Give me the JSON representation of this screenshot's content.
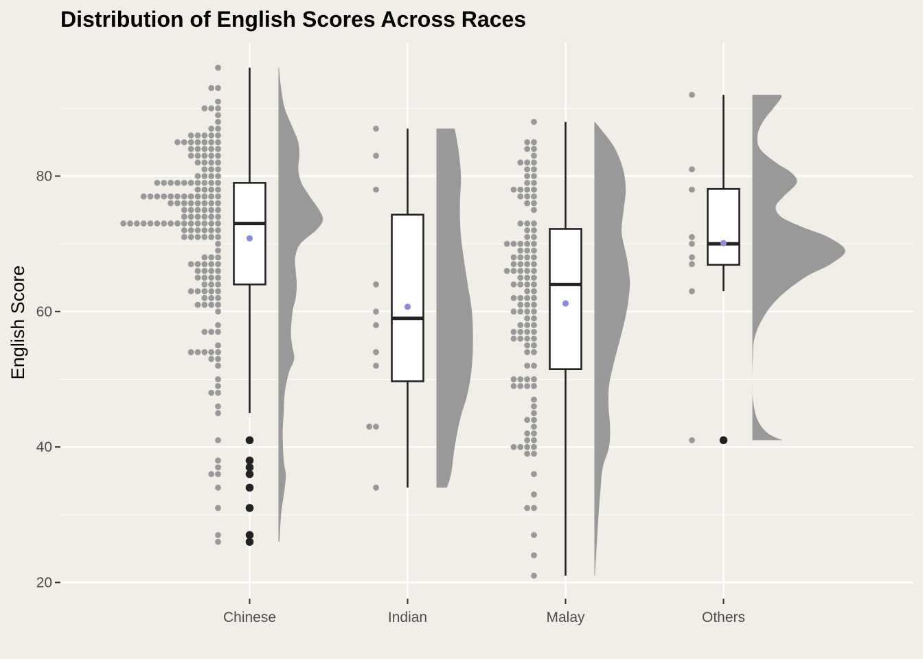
{
  "chart_data": {
    "type": "raincloud",
    "title": "Distribution of English Scores Across Races",
    "xlabel": "",
    "ylabel": "English Score",
    "ylim": [
      19,
      98
    ],
    "yticks": [
      20,
      40,
      60,
      80
    ],
    "categories": [
      "Chinese",
      "Indian",
      "Malay",
      "Others"
    ],
    "colors": {
      "background": "#f0eee6",
      "grid": "#ffffff",
      "points": "#999999",
      "density": "#999999",
      "box_fill": "#ffffff",
      "box_line": "#222222",
      "outlier": "#222222",
      "mean": "#8d8dd6"
    },
    "groups": [
      {
        "name": "Chinese",
        "box": {
          "lower_whisker": 45,
          "q1": 64,
          "median": 73,
          "q3": 79,
          "upper_whisker": 96
        },
        "mean": 70.8,
        "outliers": [
          41,
          38,
          37,
          36,
          34,
          31,
          27,
          26
        ],
        "dots": [
          [
            96,
            1
          ],
          [
            93,
            2
          ],
          [
            91,
            1
          ],
          [
            90,
            3
          ],
          [
            89,
            1
          ],
          [
            88,
            1
          ],
          [
            87,
            2
          ],
          [
            86,
            5
          ],
          [
            85,
            7
          ],
          [
            84,
            5
          ],
          [
            83,
            5
          ],
          [
            82,
            4
          ],
          [
            81,
            3
          ],
          [
            80,
            4
          ],
          [
            79,
            10
          ],
          [
            78,
            4
          ],
          [
            77,
            12
          ],
          [
            76,
            8
          ],
          [
            75,
            6
          ],
          [
            74,
            6
          ],
          [
            73,
            15
          ],
          [
            72,
            6
          ],
          [
            71,
            6
          ],
          [
            70,
            1
          ],
          [
            69,
            1
          ],
          [
            68,
            3
          ],
          [
            67,
            5
          ],
          [
            66,
            4
          ],
          [
            65,
            4
          ],
          [
            64,
            3
          ],
          [
            63,
            5
          ],
          [
            62,
            3
          ],
          [
            61,
            4
          ],
          [
            60,
            1
          ],
          [
            58,
            1
          ],
          [
            57,
            3
          ],
          [
            55,
            1
          ],
          [
            54,
            5
          ],
          [
            53,
            2
          ],
          [
            52,
            1
          ],
          [
            50,
            1
          ],
          [
            49,
            1
          ],
          [
            48,
            2
          ],
          [
            46,
            1
          ],
          [
            45,
            1
          ],
          [
            41,
            1
          ],
          [
            38,
            1
          ],
          [
            37,
            1
          ],
          [
            36,
            2
          ],
          [
            34,
            1
          ],
          [
            31,
            1
          ],
          [
            27,
            1
          ],
          [
            26,
            1
          ]
        ],
        "density": [
          [
            26,
            0.02
          ],
          [
            30,
            0.05
          ],
          [
            34,
            0.12
          ],
          [
            36,
            0.14
          ],
          [
            38,
            0.1
          ],
          [
            42,
            0.08
          ],
          [
            45,
            0.1
          ],
          [
            48,
            0.12
          ],
          [
            51,
            0.2
          ],
          [
            53,
            0.3
          ],
          [
            55,
            0.26
          ],
          [
            57,
            0.24
          ],
          [
            60,
            0.27
          ],
          [
            62,
            0.33
          ],
          [
            64,
            0.35
          ],
          [
            66,
            0.33
          ],
          [
            68,
            0.32
          ],
          [
            70,
            0.42
          ],
          [
            72,
            0.72
          ],
          [
            73.5,
            0.85
          ],
          [
            75,
            0.78
          ],
          [
            77,
            0.6
          ],
          [
            79,
            0.44
          ],
          [
            81,
            0.38
          ],
          [
            83,
            0.4
          ],
          [
            85,
            0.38
          ],
          [
            87,
            0.28
          ],
          [
            90,
            0.12
          ],
          [
            93,
            0.05
          ],
          [
            96,
            0.01
          ]
        ]
      },
      {
        "name": "Indian",
        "box": {
          "lower_whisker": 34,
          "q1": 49.7,
          "median": 59,
          "q3": 74.3,
          "upper_whisker": 87
        },
        "mean": 60.7,
        "outliers": [],
        "dots": [
          [
            87,
            1
          ],
          [
            83,
            1
          ],
          [
            78,
            1
          ],
          [
            64,
            1
          ],
          [
            60,
            1
          ],
          [
            58,
            1
          ],
          [
            54,
            1
          ],
          [
            52,
            1
          ],
          [
            43,
            2
          ],
          [
            34,
            1
          ]
        ],
        "dots_x_offset": [
          -0.23
        ],
        "density": [
          [
            34,
            0.2
          ],
          [
            36,
            0.28
          ],
          [
            40,
            0.35
          ],
          [
            44,
            0.45
          ],
          [
            48,
            0.6
          ],
          [
            52,
            0.68
          ],
          [
            56,
            0.7
          ],
          [
            60,
            0.68
          ],
          [
            64,
            0.6
          ],
          [
            68,
            0.52
          ],
          [
            72,
            0.46
          ],
          [
            76,
            0.45
          ],
          [
            80,
            0.47
          ],
          [
            84,
            0.42
          ],
          [
            87,
            0.35
          ]
        ]
      },
      {
        "name": "Malay",
        "box": {
          "lower_whisker": 21,
          "q1": 51.5,
          "median": 64,
          "q3": 72.2,
          "upper_whisker": 88
        },
        "mean": 61.2,
        "outliers": [],
        "dots": [
          [
            88,
            1
          ],
          [
            85,
            2
          ],
          [
            84,
            2
          ],
          [
            83,
            1
          ],
          [
            82,
            3
          ],
          [
            81,
            2
          ],
          [
            80,
            2
          ],
          [
            79,
            2
          ],
          [
            78,
            4
          ],
          [
            77,
            3
          ],
          [
            76,
            2
          ],
          [
            75,
            1
          ],
          [
            73,
            3
          ],
          [
            72,
            2
          ],
          [
            71,
            2
          ],
          [
            70,
            5
          ],
          [
            69,
            3
          ],
          [
            68,
            4
          ],
          [
            67,
            4
          ],
          [
            66,
            5
          ],
          [
            65,
            3
          ],
          [
            64,
            4
          ],
          [
            63,
            2
          ],
          [
            62,
            4
          ],
          [
            61,
            3
          ],
          [
            60,
            4
          ],
          [
            59,
            2
          ],
          [
            58,
            3
          ],
          [
            57,
            4
          ],
          [
            56,
            4
          ],
          [
            55,
            2
          ],
          [
            54,
            2
          ],
          [
            52,
            2
          ],
          [
            50,
            4
          ],
          [
            49,
            4
          ],
          [
            47,
            1
          ],
          [
            46,
            1
          ],
          [
            45,
            1
          ],
          [
            44,
            2
          ],
          [
            43,
            1
          ],
          [
            42,
            2
          ],
          [
            41,
            2
          ],
          [
            40,
            4
          ],
          [
            39,
            2
          ],
          [
            36,
            1
          ],
          [
            33,
            1
          ],
          [
            31,
            2
          ],
          [
            27,
            1
          ],
          [
            24,
            1
          ],
          [
            21,
            1
          ]
        ],
        "density": [
          [
            21,
            0.01
          ],
          [
            25,
            0.04
          ],
          [
            30,
            0.08
          ],
          [
            34,
            0.12
          ],
          [
            37,
            0.16
          ],
          [
            40,
            0.28
          ],
          [
            43,
            0.3
          ],
          [
            46,
            0.27
          ],
          [
            49,
            0.28
          ],
          [
            52,
            0.36
          ],
          [
            55,
            0.46
          ],
          [
            58,
            0.56
          ],
          [
            61,
            0.64
          ],
          [
            64,
            0.68
          ],
          [
            66,
            0.66
          ],
          [
            68,
            0.62
          ],
          [
            70,
            0.56
          ],
          [
            72,
            0.52
          ],
          [
            75,
            0.56
          ],
          [
            78,
            0.6
          ],
          [
            81,
            0.55
          ],
          [
            84,
            0.4
          ],
          [
            86,
            0.22
          ],
          [
            88,
            0.01
          ]
        ]
      },
      {
        "name": "Others",
        "box": {
          "lower_whisker": 63,
          "q1": 66.9,
          "median": 70,
          "q3": 78.1,
          "upper_whisker": 92
        },
        "mean": 70.1,
        "outliers": [
          41
        ],
        "dots": [
          [
            92,
            1
          ],
          [
            81,
            1
          ],
          [
            78,
            1
          ],
          [
            71,
            1
          ],
          [
            70,
            1
          ],
          [
            68,
            1
          ],
          [
            67,
            1
          ],
          [
            63,
            1
          ],
          [
            41,
            1
          ]
        ],
        "density": [
          [
            41,
            0.58
          ],
          [
            42,
            0.3
          ],
          [
            44,
            0.1
          ],
          [
            47,
            0.01
          ],
          [
            50,
            0.0
          ],
          [
            53,
            0.01
          ],
          [
            56,
            0.04
          ],
          [
            59,
            0.2
          ],
          [
            62,
            0.5
          ],
          [
            65,
            1.0
          ],
          [
            67,
            1.5
          ],
          [
            69,
            1.78
          ],
          [
            71,
            1.45
          ],
          [
            72.5,
            0.95
          ],
          [
            74,
            0.55
          ],
          [
            75.5,
            0.45
          ],
          [
            77,
            0.6
          ],
          [
            79,
            0.85
          ],
          [
            80.5,
            0.75
          ],
          [
            82,
            0.45
          ],
          [
            84,
            0.15
          ],
          [
            86,
            0.1
          ],
          [
            88,
            0.2
          ],
          [
            90,
            0.4
          ],
          [
            91.5,
            0.55
          ],
          [
            92,
            0.55
          ]
        ]
      }
    ]
  }
}
